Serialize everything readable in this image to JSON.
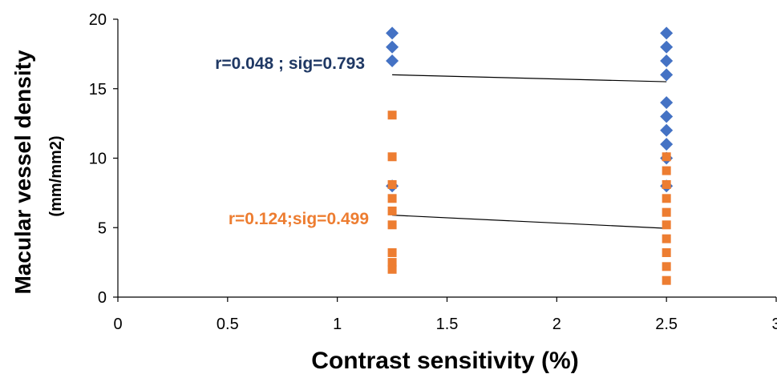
{
  "chart_data": {
    "type": "scatter",
    "xlabel": "Contrast sensitivity (%)",
    "ylabel": "Macular vessel density",
    "ylabel_unit": "(mm/mm2)",
    "xlim": [
      0,
      3
    ],
    "ylim": [
      0,
      20
    ],
    "x_ticks": [
      "0",
      "0.5",
      "1",
      "1.5",
      "2",
      "2.5",
      "3"
    ],
    "y_ticks": [
      "0",
      "5",
      "10",
      "15",
      "20"
    ],
    "grid": false,
    "series": [
      {
        "marker": "diamond",
        "color": "#4472C4",
        "points": [
          [
            1.25,
            19
          ],
          [
            1.25,
            18
          ],
          [
            1.25,
            17
          ],
          [
            1.25,
            8
          ],
          [
            2.5,
            19
          ],
          [
            2.5,
            18
          ],
          [
            2.5,
            17
          ],
          [
            2.5,
            16
          ],
          [
            2.5,
            14
          ],
          [
            2.5,
            13
          ],
          [
            2.5,
            12
          ],
          [
            2.5,
            11
          ],
          [
            2.5,
            10
          ],
          [
            2.5,
            8
          ]
        ],
        "trendline": [
          [
            1.25,
            16
          ],
          [
            2.5,
            15.5
          ]
        ],
        "annotation": "r=0.048 ; sig=0.793",
        "annotation_color": "#1F3864"
      },
      {
        "marker": "square",
        "color": "#ED7D31",
        "points": [
          [
            1.25,
            13.1
          ],
          [
            1.25,
            10.1
          ],
          [
            1.25,
            8.1
          ],
          [
            1.25,
            7.1
          ],
          [
            1.25,
            6.2
          ],
          [
            1.25,
            5.2
          ],
          [
            1.25,
            3.2
          ],
          [
            1.25,
            2.5
          ],
          [
            1.25,
            2.0
          ],
          [
            2.5,
            10.1
          ],
          [
            2.5,
            9.1
          ],
          [
            2.5,
            8.1
          ],
          [
            2.5,
            7.1
          ],
          [
            2.5,
            6.1
          ],
          [
            2.5,
            5.2
          ],
          [
            2.5,
            4.2
          ],
          [
            2.5,
            3.2
          ],
          [
            2.5,
            2.2
          ],
          [
            2.5,
            1.2
          ]
        ],
        "trendline": [
          [
            1.25,
            5.9
          ],
          [
            2.5,
            4.95
          ]
        ],
        "annotation": "r=0.124;sig=0.499",
        "annotation_color": "#ED7D31"
      }
    ]
  }
}
